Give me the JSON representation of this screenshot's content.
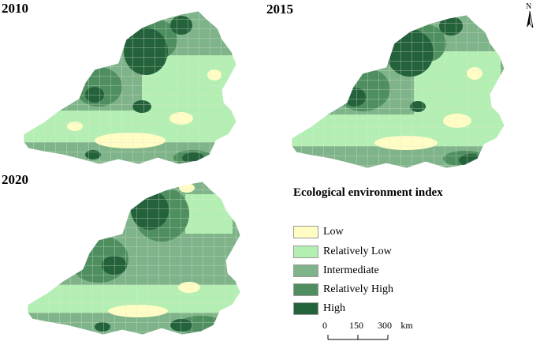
{
  "maps": [
    {
      "year": "2010"
    },
    {
      "year": "2015"
    },
    {
      "year": "2020"
    }
  ],
  "legend": {
    "title": "Ecological environment index",
    "classes": [
      {
        "label": "Low",
        "color": "#fffcc4"
      },
      {
        "label": "Relatively Low",
        "color": "#b3efb2"
      },
      {
        "label": "Intermediate",
        "color": "#7fb389"
      },
      {
        "label": "Relatively High",
        "color": "#4f8f5f"
      },
      {
        "label": "High",
        "color": "#24623c"
      }
    ]
  },
  "scale_bar": {
    "ticks": [
      "0",
      "150",
      "300"
    ],
    "unit": "km"
  },
  "north_arrow": {
    "label": "N",
    "icon": "north-arrow-icon"
  }
}
